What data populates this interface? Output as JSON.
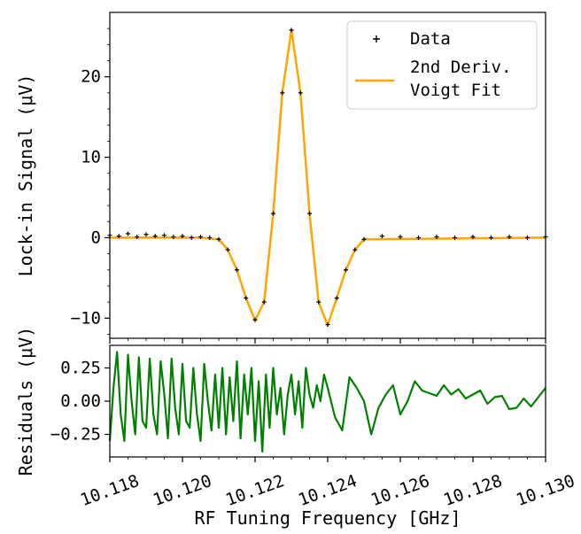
{
  "chart_data": [
    {
      "type": "line",
      "panel": "main",
      "ylabel": "Lock-in Signal (μV)",
      "xlim": [
        10.118,
        10.13
      ],
      "ylim": [
        -12.5,
        28
      ],
      "yticks": [
        -10,
        0,
        10,
        20
      ],
      "ytick_labels": [
        "−10",
        "0",
        "10",
        "20"
      ],
      "legend": {
        "placement": "top-right",
        "entries": [
          {
            "label": "Data"
          },
          {
            "label_line1": "2nd Deriv.",
            "label_line2": "Voigt Fit"
          }
        ]
      },
      "series": [
        {
          "name": "Data",
          "style": "markers",
          "color": "#000000",
          "x": [
            10.118,
            10.11825,
            10.1185,
            10.11875,
            10.119,
            10.11925,
            10.1195,
            10.11975,
            10.12,
            10.12025,
            10.1205,
            10.12075,
            10.121,
            10.12125,
            10.1215,
            10.12175,
            10.122,
            10.12225,
            10.1225,
            10.12275,
            10.123,
            10.12325,
            10.1235,
            10.12375,
            10.124,
            10.12425,
            10.1245,
            10.12475,
            10.125,
            10.1255,
            10.126,
            10.1265,
            10.127,
            10.1275,
            10.128,
            10.1285,
            10.129,
            10.1295,
            10.13
          ],
          "y": [
            0.3,
            0.2,
            0.5,
            0.1,
            0.4,
            0.2,
            0.3,
            0.1,
            0.2,
            0.0,
            0.1,
            0.0,
            -0.2,
            -1.5,
            -4.0,
            -7.5,
            -10.2,
            -8.0,
            3.0,
            18.0,
            25.8,
            18.0,
            3.0,
            -8.0,
            -10.8,
            -7.5,
            -4.0,
            -1.5,
            -0.2,
            0.2,
            0.1,
            0.0,
            0.1,
            0.0,
            0.1,
            0.0,
            0.1,
            0.0,
            0.1
          ]
        },
        {
          "name": "2nd Deriv. Voigt Fit",
          "style": "line",
          "color": "#FFA500",
          "x": [
            10.118,
            10.1205,
            10.121,
            10.12125,
            10.1215,
            10.12175,
            10.122,
            10.12225,
            10.1225,
            10.12275,
            10.123,
            10.12325,
            10.1235,
            10.12375,
            10.124,
            10.12425,
            10.1245,
            10.12475,
            10.125,
            10.13
          ],
          "y": [
            0.0,
            0.0,
            -0.2,
            -1.5,
            -4.0,
            -7.5,
            -10.3,
            -8.0,
            3.0,
            18.0,
            25.8,
            18.0,
            3.0,
            -8.0,
            -10.9,
            -7.5,
            -4.0,
            -1.5,
            -0.2,
            0.0
          ]
        }
      ]
    },
    {
      "type": "line",
      "panel": "residuals",
      "xlabel": "RF Tuning Frequency [GHz]",
      "ylabel": "Residuals (μV)",
      "xlim": [
        10.118,
        10.13
      ],
      "ylim": [
        -0.42,
        0.42
      ],
      "xticks": [
        10.118,
        10.12,
        10.122,
        10.124,
        10.126,
        10.128,
        10.13
      ],
      "xtick_labels": [
        "10.118",
        "10.120",
        "10.122",
        "10.124",
        "10.126",
        "10.128",
        "10.130"
      ],
      "yticks": [
        -0.25,
        0.0,
        0.25
      ],
      "ytick_labels": [
        "−0.25",
        "0.00",
        "0.25"
      ],
      "series": [
        {
          "name": "Residuals",
          "color": "#008000",
          "x": [
            10.118,
            10.1181,
            10.1182,
            10.1183,
            10.1184,
            10.1185,
            10.1186,
            10.1187,
            10.1188,
            10.1189,
            10.119,
            10.1191,
            10.1192,
            10.1193,
            10.1194,
            10.1195,
            10.1196,
            10.1197,
            10.1198,
            10.1199,
            10.12,
            10.1201,
            10.1202,
            10.1203,
            10.1204,
            10.1205,
            10.1206,
            10.1207,
            10.1208,
            10.1209,
            10.121,
            10.1211,
            10.1212,
            10.1213,
            10.1214,
            10.1215,
            10.1216,
            10.1217,
            10.1218,
            10.1219,
            10.122,
            10.1221,
            10.1222,
            10.1223,
            10.1224,
            10.1225,
            10.1226,
            10.1227,
            10.1228,
            10.1229,
            10.123,
            10.1231,
            10.1232,
            10.1233,
            10.1234,
            10.1235,
            10.1236,
            10.1237,
            10.1238,
            10.1239,
            10.124,
            10.1242,
            10.1244,
            10.1246,
            10.1248,
            10.125,
            10.1252,
            10.1254,
            10.1256,
            10.1258,
            10.126,
            10.1262,
            10.1264,
            10.1266,
            10.1268,
            10.127,
            10.1272,
            10.1274,
            10.1276,
            10.1278,
            10.128,
            10.1282,
            10.1284,
            10.1286,
            10.1288,
            10.129,
            10.1292,
            10.1294,
            10.1296,
            10.1298,
            10.13
          ],
          "y": [
            -0.3,
            0.1,
            0.37,
            -0.1,
            -0.3,
            0.35,
            0.0,
            -0.25,
            0.33,
            -0.15,
            -0.2,
            0.32,
            -0.1,
            -0.25,
            0.3,
            0.05,
            -0.28,
            0.32,
            -0.05,
            -0.25,
            0.28,
            -0.15,
            -0.2,
            0.25,
            -0.1,
            -0.3,
            0.28,
            0.0,
            -0.22,
            0.2,
            -0.2,
            0.25,
            -0.25,
            0.18,
            -0.15,
            0.3,
            -0.28,
            0.2,
            -0.1,
            0.25,
            -0.3,
            0.15,
            -0.38,
            0.2,
            -0.2,
            0.25,
            -0.1,
            0.1,
            -0.25,
            0.05,
            0.2,
            -0.1,
            0.15,
            -0.2,
            0.25,
            0.05,
            -0.05,
            0.12,
            0.0,
            0.2,
            0.1,
            -0.12,
            -0.22,
            0.18,
            0.1,
            0.0,
            -0.25,
            -0.05,
            0.05,
            0.12,
            -0.1,
            0.0,
            0.15,
            0.08,
            0.06,
            0.04,
            0.12,
            0.05,
            0.09,
            0.02,
            0.05,
            0.08,
            -0.02,
            0.03,
            0.04,
            -0.06,
            -0.05,
            0.02,
            -0.04,
            0.03,
            0.1
          ]
        }
      ]
    }
  ]
}
